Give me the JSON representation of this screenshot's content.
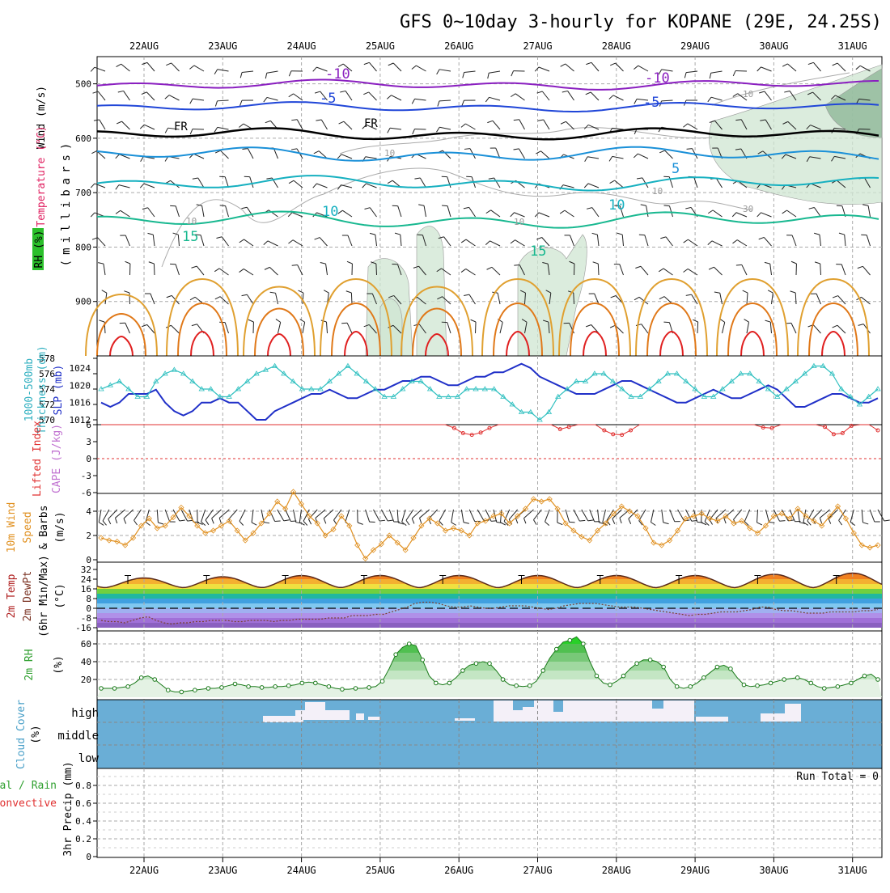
{
  "title": "GFS 0~10day 3-hourly for KOPANE (29E, 24.25S)",
  "dates": [
    "22AUG",
    "23AUG",
    "24AUG",
    "25AUG",
    "26AUG",
    "27AUG",
    "28AUG",
    "29AUG",
    "30AUG",
    "31AUG"
  ],
  "labels": {
    "upper": {
      "wind": "Wind (m/s)",
      "temp": "Temperature (°C)",
      "rh": "RH (%)",
      "unit": "(millibars)"
    },
    "thick": {
      "a": "1000-500mb",
      "b": "Thickness (dm)",
      "c": "SLP (mb)"
    },
    "li": {
      "a": "Lifted Index",
      "b": "CAPE (J/kg)"
    },
    "wind10": {
      "a": "10m Wind",
      "b": "Speed",
      "c": "& Barbs",
      "d": "(m/s)"
    },
    "temp2m": {
      "a": "2m Temp",
      "b": "2m DewPt",
      "c": "(6hr Min/Max)",
      "d": "(°C)"
    },
    "rh2m": {
      "a": "2m RH",
      "b": "(%)"
    },
    "cloud": {
      "a": "Cloud Cover",
      "b": "(%)",
      "high": "high",
      "middle": "middle",
      "low": "low"
    },
    "precip": {
      "a": "Total / Rain",
      "b": "Convective",
      "c": "3hr Precip (mm)",
      "run_total": "Run Total = 0"
    }
  },
  "contour_labels": {
    "m10": "-10",
    "m5": "-5",
    "fr": "FR",
    "p5": "5",
    "p10": "10",
    "p15": "15",
    "rh10": "10",
    "rh30": "30"
  },
  "colors": {
    "tempCold": "#8a1fc0",
    "tempMinus5": "#2046d8",
    "tempPlus5": "#1a90d8",
    "tempPlus10": "#16b0c0",
    "tempPlus15": "#18b890",
    "warmOrange": "#e0a030",
    "warmDark": "#e07818",
    "hot": "#e02020",
    "slp": "#2030c8",
    "thickness": "#30c0c0",
    "li": "#e03030",
    "wind": "#e09020",
    "rh": "#30a030",
    "cloud": "#6aaed6"
  },
  "chart_data": [
    {
      "type": "contour",
      "panel": "upper-air",
      "y_axis": "pressure (mb)",
      "y_ticks": [
        500,
        600,
        700,
        800,
        900
      ],
      "ylim": [
        1000,
        450
      ],
      "isotherms_C": [
        -10,
        -5,
        0,
        5,
        10,
        15
      ],
      "approx_level_mb": {
        "-10": 478,
        "-5": 522,
        "0": 572,
        "5": 612,
        "10": 668,
        "15": 742
      }
    },
    {
      "type": "line",
      "panel": "thickness-slp",
      "series": [
        {
          "name": "SLP (mb)",
          "y_ticks": [
            1012,
            1016,
            1020,
            1024
          ],
          "values": [
            1016,
            1015,
            1016,
            1018,
            1018,
            1018,
            1019,
            1016,
            1014,
            1013,
            1014,
            1016,
            1016,
            1017,
            1016,
            1016,
            1014,
            1012,
            1012,
            1014,
            1015,
            1016,
            1017,
            1018,
            1018,
            1019,
            1018,
            1017,
            1017,
            1018,
            1019,
            1019,
            1020,
            1021,
            1021,
            1022,
            1022,
            1021,
            1020,
            1020,
            1021,
            1022,
            1022,
            1023,
            1023,
            1024,
            1025,
            1024,
            1022,
            1021,
            1020,
            1019,
            1018,
            1018,
            1018,
            1019,
            1020,
            1021,
            1021,
            1020,
            1019,
            1018,
            1017,
            1016,
            1016,
            1017,
            1018,
            1019,
            1018,
            1017,
            1017,
            1018,
            1019,
            1020,
            1019,
            1017,
            1015,
            1015,
            1016,
            1017,
            1018,
            1018,
            1017,
            1016,
            1016,
            1017
          ]
        },
        {
          "name": "1000-500mb Thickness (dm)",
          "y_ticks": [
            570,
            572,
            574,
            576,
            578
          ],
          "values": [
            574,
            574.5,
            575,
            574,
            573,
            573,
            575,
            576,
            576.5,
            576,
            575,
            574,
            574,
            573,
            573,
            574,
            575,
            576,
            576.5,
            577,
            576,
            575,
            574,
            574,
            574,
            575,
            576,
            577,
            576,
            575,
            574,
            573,
            573,
            574,
            575,
            575,
            574,
            573,
            573,
            573,
            574,
            574,
            574,
            574,
            573,
            572,
            571,
            571,
            570,
            571,
            573,
            574,
            575,
            575,
            576,
            576,
            575,
            574,
            573,
            573,
            574,
            575,
            576,
            576,
            575,
            574,
            573,
            573,
            574,
            575,
            576,
            576,
            575,
            574,
            573,
            574,
            575,
            576,
            577,
            577,
            576,
            574,
            573,
            572,
            573,
            574
          ]
        }
      ]
    },
    {
      "type": "line",
      "panel": "lifted-index-cape",
      "y_ticks": [
        6,
        3,
        0,
        -3,
        -6
      ],
      "series": [
        {
          "name": "Lifted Index",
          "values": [
            6,
            6,
            6,
            6,
            6,
            6,
            6,
            6,
            6,
            6,
            6,
            6,
            6,
            6,
            6,
            6,
            6,
            6,
            6,
            6,
            6,
            6,
            6,
            6,
            6,
            6,
            6,
            6,
            6,
            6,
            6,
            6,
            6,
            6,
            6,
            6,
            6,
            6,
            6,
            6,
            5.4,
            4.5,
            4.2,
            4.6,
            5.4,
            6,
            6,
            6,
            6,
            6,
            6,
            6,
            5.2,
            5.6,
            6,
            6,
            6,
            5.0,
            4.3,
            4.2,
            5,
            6,
            6,
            6,
            6,
            6,
            6,
            6,
            6,
            6,
            6,
            6,
            6,
            6,
            6,
            5.5,
            5.4,
            6,
            6,
            6,
            6,
            6,
            5.6,
            4.3,
            4.5,
            5.8,
            6,
            6,
            5.0
          ]
        }
      ]
    },
    {
      "type": "line",
      "panel": "10m-wind",
      "y_ticks": [
        0,
        2,
        4
      ],
      "series": [
        {
          "name": "10m Wind Speed (m/s)",
          "values": [
            1.8,
            1.6,
            1.5,
            1.2,
            1.8,
            2.8,
            3.4,
            2.6,
            2.8,
            3.5,
            4.3,
            3.6,
            2.8,
            2.2,
            2.4,
            2.8,
            3.2,
            2.4,
            1.6,
            2.2,
            3.0,
            3.8,
            4.8,
            4.2,
            5.6,
            4.6,
            3.6,
            3.0,
            2.0,
            2.5,
            3.6,
            2.8,
            1.2,
            0.1,
            0.8,
            1.3,
            2.0,
            1.4,
            0.8,
            1.8,
            2.8,
            3.4,
            3.0,
            2.4,
            2.6,
            2.4,
            2.0,
            3.0,
            3.2,
            3.6,
            3.8,
            3.0,
            3.6,
            4.2,
            5.0,
            4.8,
            5.0,
            4.2,
            3.0,
            2.4,
            1.9,
            1.6,
            2.4,
            3.0,
            3.8,
            4.4,
            4.0,
            3.6,
            2.6,
            1.4,
            1.2,
            1.6,
            2.4,
            3.4,
            3.6,
            3.8,
            3.4,
            3.2,
            3.6,
            3.0,
            3.2,
            2.6,
            2.2,
            2.8,
            3.6,
            3.8,
            3.4,
            4.2,
            3.6,
            3.2,
            2.8,
            3.6,
            4.4,
            3.4,
            2.2,
            1.2,
            1.0,
            1.2
          ]
        }
      ]
    },
    {
      "type": "area",
      "panel": "2m-temp",
      "y_ticks": [
        -16,
        -8,
        0,
        8,
        16,
        24,
        32
      ],
      "series": [
        {
          "name": "2m Temp (°C)",
          "daily_min": 17,
          "daily_max": [
            25,
            26,
            27,
            27,
            27,
            27,
            27,
            27,
            28,
            29
          ]
        },
        {
          "name": "2m DewPt (°C)",
          "values": [
            -10,
            -11,
            -11,
            -12,
            -10,
            -8,
            -7,
            -10,
            -12,
            -13,
            -12,
            -12,
            -11,
            -11,
            -10,
            -10,
            -10,
            -11,
            -11,
            -10,
            -10,
            -10,
            -11,
            -10,
            -10,
            -9,
            -9,
            -9,
            -9,
            -8,
            -8,
            -8,
            -6,
            -6,
            -6,
            -5,
            -5,
            -3,
            -1,
            1,
            4,
            5,
            5,
            4,
            2,
            1,
            1,
            2,
            1,
            0,
            0,
            1,
            2,
            2,
            2,
            1,
            0,
            -1,
            0,
            2,
            3,
            4,
            4,
            4,
            3,
            2,
            1,
            1,
            1,
            0,
            -1,
            -2,
            -3,
            -4,
            -5,
            -6,
            -5,
            -5,
            -4,
            -3,
            -3,
            -3,
            -2,
            -1,
            1,
            1,
            -1,
            -2,
            -2,
            -3,
            -4,
            -4,
            -4,
            -3,
            -3,
            -3,
            -3,
            -2,
            -2,
            -1
          ]
        }
      ]
    },
    {
      "type": "area",
      "panel": "2m-rh",
      "y_ticks": [
        20,
        40,
        60
      ],
      "series": [
        {
          "name": "2m RH (%)",
          "values": [
            10,
            10,
            10,
            11,
            12,
            16,
            22,
            24,
            20,
            14,
            8,
            6,
            6,
            7,
            8,
            9,
            10,
            10,
            11,
            13,
            15,
            14,
            12,
            12,
            11,
            11,
            12,
            12,
            13,
            14,
            16,
            17,
            16,
            14,
            12,
            10,
            9,
            9,
            10,
            10,
            11,
            12,
            18,
            32,
            48,
            56,
            60,
            58,
            42,
            24,
            16,
            14,
            16,
            22,
            30,
            36,
            38,
            40,
            38,
            30,
            20,
            14,
            13,
            12,
            13,
            18,
            30,
            44,
            54,
            62,
            64,
            68,
            60,
            40,
            24,
            16,
            14,
            18,
            24,
            32,
            38,
            42,
            42,
            40,
            34,
            20,
            12,
            10,
            12,
            16,
            22,
            28,
            34,
            36,
            32,
            22,
            14,
            12,
            13,
            14,
            16,
            18,
            20,
            21,
            22,
            20,
            16,
            12,
            10,
            11,
            12,
            14,
            16,
            20,
            24,
            26,
            20
          ]
        }
      ]
    },
    {
      "type": "bar",
      "panel": "cloud-cover",
      "levels": [
        "high",
        "middle",
        "low"
      ]
    },
    {
      "type": "bar",
      "panel": "3hr-precip",
      "y_ticks": [
        0,
        0.2,
        0.4,
        0.6,
        0.8
      ],
      "ylim": [
        0,
        1
      ],
      "values": []
    }
  ]
}
